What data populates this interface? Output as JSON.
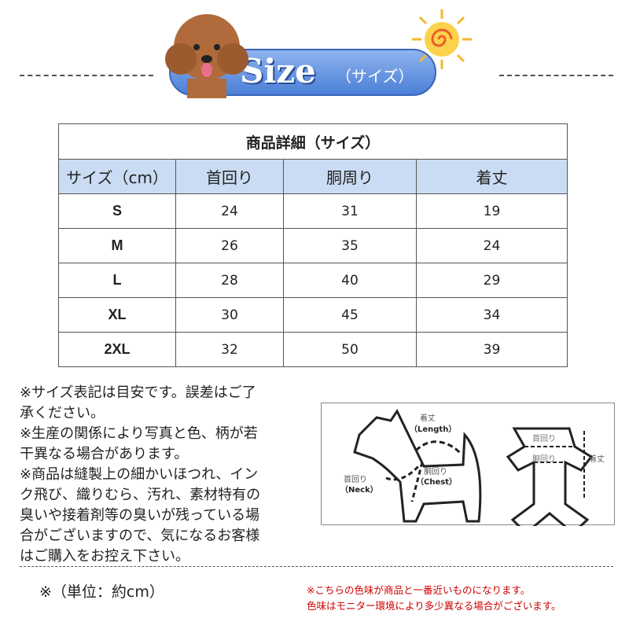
{
  "header": {
    "title": "Size",
    "subtitle": "（サイズ）"
  },
  "table": {
    "title": "商品詳細（サイズ）",
    "columns": [
      "サイズ（cm）",
      "首回り",
      "胴周り",
      "着丈"
    ],
    "rows": [
      [
        "S",
        "24",
        "31",
        "19"
      ],
      [
        "M",
        "26",
        "35",
        "24"
      ],
      [
        "L",
        "28",
        "40",
        "29"
      ],
      [
        "XL",
        "30",
        "45",
        "34"
      ],
      [
        "2XL",
        "32",
        "50",
        "39"
      ]
    ]
  },
  "notes": [
    "※サイズ表記は目安です。誤差はご了",
    "承ください。",
    "※生産の関係により写真と色、柄が若",
    "干異なる場合があります。",
    "※商品は縫製上の細かいほつれ、イン",
    "ク飛び、織りむら、汚れ、素材特有の",
    "臭いや接着剤等の臭いが残っている場",
    "合がございますので、気になるお客様",
    "はご購入をお控え下さい。"
  ],
  "diagram": {
    "length_jp": "着丈",
    "length_en": "（Length）",
    "chest_jp": "胴回り",
    "chest_en": "（Chest）",
    "neck_jp": "首回り",
    "neck_en": "（Neck）",
    "cloth_neck": "首回り",
    "cloth_chest": "胴回り",
    "cloth_length": "着丈"
  },
  "unit": "※（単位：約cm）",
  "color_notes": [
    "※こちらの色味が商品と一番近いものになります。",
    "色味はモニター環境により多少異なる場合がございます。"
  ],
  "colors": {
    "banner": "#4b7fd6",
    "header_row": "#c9dcf3",
    "note_red": "#cc0000"
  }
}
